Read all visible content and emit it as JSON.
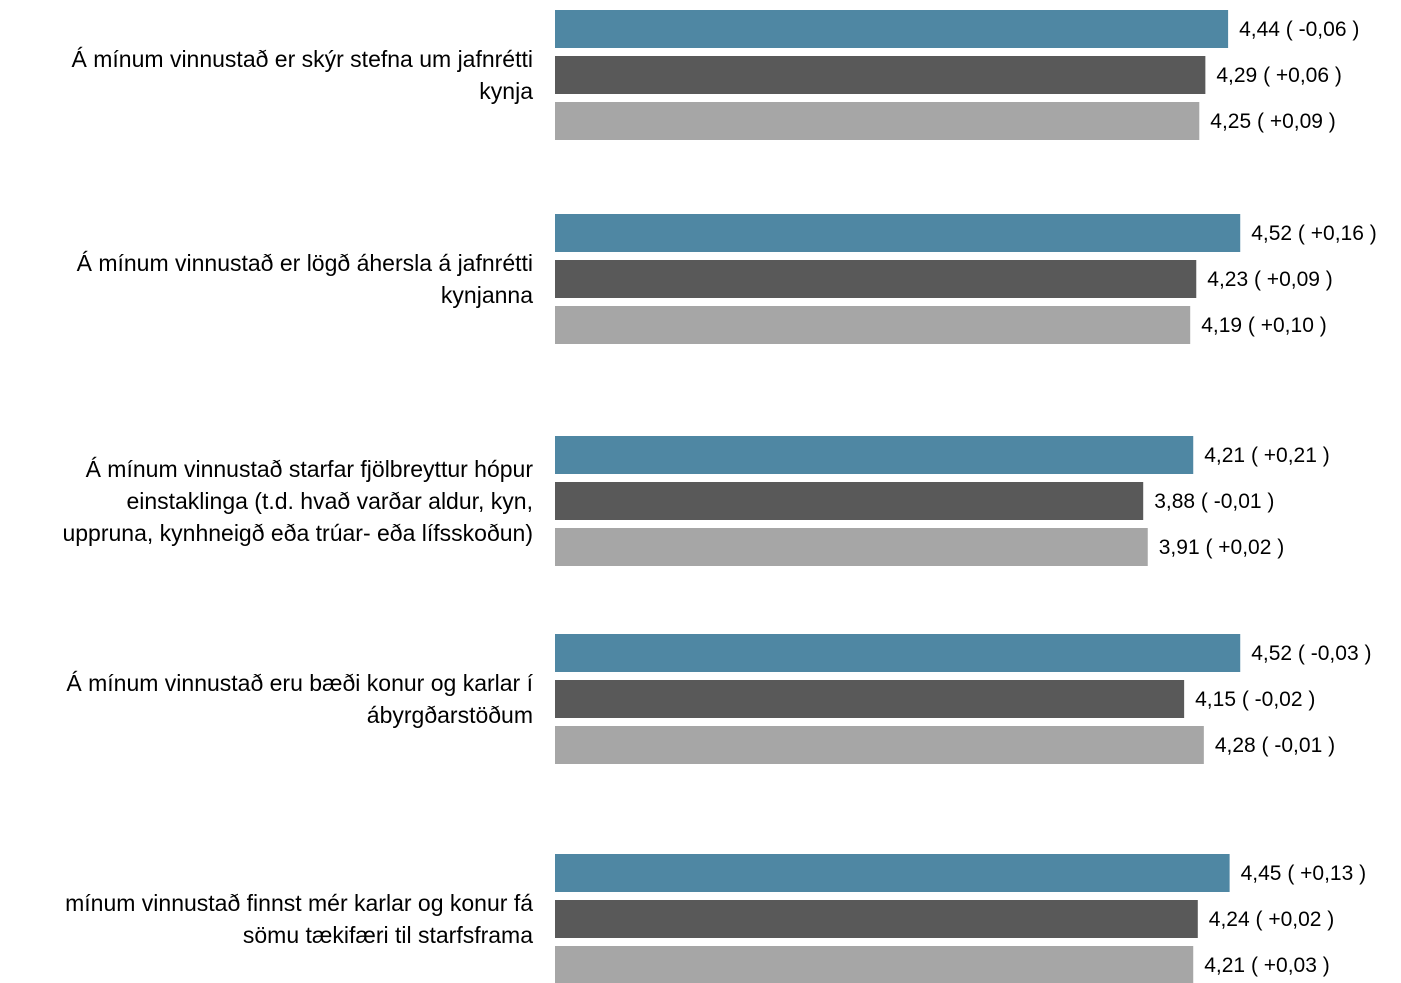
{
  "chart_data": {
    "type": "bar",
    "orientation": "horizontal",
    "categories": [
      [
        "Á mínum vinnustað er skýr stefna um jafnrétti",
        "kynja"
      ],
      [
        "Á mínum vinnustað er lögð áhersla á jafnrétti",
        "kynjanna"
      ],
      [
        "Á mínum vinnustað starfar fjölbreyttur hópur",
        "einstaklinga (t.d. hvað varðar aldur, kyn,",
        "uppruna, kynhneigð eða trúar- eða lífsskoðun)"
      ],
      [
        "Á mínum vinnustað eru bæði konur og karlar í",
        "ábyrgðarstöðum"
      ],
      [
        "mínum vinnustað finnst mér karlar og konur fá",
        "sömu tækifæri til starfsframa"
      ]
    ],
    "series": [
      {
        "color": "#4f87a3",
        "values": [
          4.44,
          4.52,
          4.21,
          4.52,
          4.45
        ],
        "labels": [
          "4,44 ( -0,06 )",
          "4,52 ( +0,16 )",
          "4,21 ( +0,21 )",
          "4,52 ( -0,03 )",
          "4,45 ( +0,13 )"
        ]
      },
      {
        "color": "#595959",
        "values": [
          4.29,
          4.23,
          3.88,
          4.15,
          4.24
        ],
        "labels": [
          "4,29 ( +0,06 )",
          "4,23 ( +0,09 )",
          "3,88 ( -0,01 )",
          "4,15 ( -0,02 )",
          "4,24 ( +0,02 )"
        ]
      },
      {
        "color": "#a6a6a6",
        "values": [
          4.25,
          4.19,
          3.91,
          4.28,
          4.21
        ],
        "labels": [
          "4,25 ( +0,09 )",
          "4,19 ( +0,10 )",
          "3,91 ( +0,02 )",
          "4,28 ( -0,01 )",
          "4,21 ( +0,03 )"
        ]
      }
    ],
    "xlim": [
      0,
      5
    ],
    "grid": false,
    "legend": "none"
  }
}
